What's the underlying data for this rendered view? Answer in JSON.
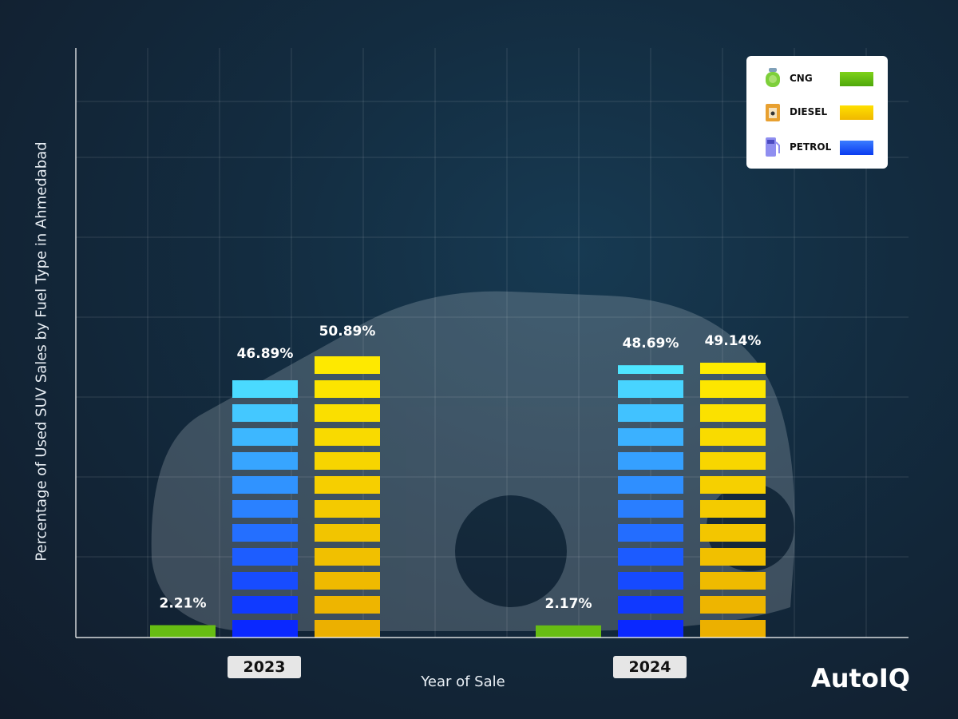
{
  "chart_data": {
    "type": "bar",
    "title": "",
    "xlabel": "Year of Sale",
    "ylabel": "Percentage of Used SUV Sales by Fuel Type in Ahmedabad",
    "categories": [
      "2023",
      "2024"
    ],
    "series": [
      {
        "name": "CNG",
        "values": [
          2.21,
          2.17
        ],
        "labels": [
          "2.21%",
          "2.17%"
        ],
        "color": "#5cb80e"
      },
      {
        "name": "PETROL",
        "values": [
          46.89,
          48.69
        ],
        "labels": [
          "46.89%",
          "48.69%"
        ],
        "color": "#1f5cff"
      },
      {
        "name": "DIESEL",
        "values": [
          50.89,
          49.14
        ],
        "labels": [
          "50.89%",
          "49.14%"
        ],
        "color": "#f5c800"
      }
    ],
    "ylim": [
      0,
      105
    ],
    "grid": true,
    "legend_placement": "top-right",
    "y_tick_labels_shown": false
  },
  "legend": [
    {
      "label": "CNG",
      "icon": "gas-cylinder-icon",
      "color": "#5cb80e"
    },
    {
      "label": "DIESEL",
      "icon": "fuel-jerrycan-icon",
      "color": "#f5c800"
    },
    {
      "label": "PETROL",
      "icon": "fuel-pump-icon",
      "color": "#1f5cff"
    }
  ],
  "brand": "AutoIQ",
  "background_image": "white SUV photo"
}
